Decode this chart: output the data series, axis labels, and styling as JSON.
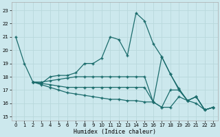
{
  "xlabel": "Humidex (Indice chaleur)",
  "bg_color": "#cce8ed",
  "line_color": "#1a6b6b",
  "grid_color": "#b8d8dc",
  "ylim": [
    14.7,
    23.6
  ],
  "xlim": [
    -0.5,
    23.5
  ],
  "yticks": [
    15,
    16,
    17,
    18,
    19,
    20,
    21,
    22,
    23
  ],
  "xticks": [
    0,
    1,
    2,
    3,
    4,
    5,
    6,
    7,
    8,
    9,
    10,
    11,
    12,
    13,
    14,
    15,
    16,
    17,
    18,
    19,
    20,
    21,
    22,
    23
  ],
  "lines": [
    [
      [
        0,
        21.0
      ],
      [
        1,
        19.0
      ],
      [
        2,
        17.6
      ],
      [
        3,
        17.5
      ],
      [
        4,
        18.0
      ],
      [
        5,
        18.1
      ],
      [
        6,
        18.1
      ],
      [
        7,
        18.3
      ],
      [
        8,
        19.0
      ],
      [
        9,
        19.0
      ],
      [
        10,
        19.4
      ],
      [
        11,
        21.0
      ],
      [
        12,
        20.8
      ],
      [
        13,
        19.6
      ],
      [
        14,
        22.8
      ],
      [
        15,
        22.2
      ],
      [
        16,
        20.5
      ],
      [
        17,
        19.5
      ],
      [
        18,
        18.2
      ],
      [
        19,
        17.1
      ],
      [
        20,
        16.2
      ],
      [
        21,
        16.5
      ],
      [
        22,
        15.5
      ],
      [
        23,
        15.7
      ]
    ],
    [
      [
        2,
        17.6
      ],
      [
        3,
        17.6
      ],
      [
        4,
        17.7
      ],
      [
        5,
        17.8
      ],
      [
        6,
        17.9
      ],
      [
        7,
        18.0
      ],
      [
        8,
        18.0
      ],
      [
        9,
        18.0
      ],
      [
        10,
        18.0
      ],
      [
        11,
        18.0
      ],
      [
        12,
        18.0
      ],
      [
        13,
        18.0
      ],
      [
        14,
        18.0
      ],
      [
        15,
        18.0
      ],
      [
        16,
        16.1
      ],
      [
        17,
        19.5
      ],
      [
        18,
        18.2
      ],
      [
        19,
        17.0
      ],
      [
        20,
        16.2
      ],
      [
        21,
        16.5
      ],
      [
        22,
        15.5
      ],
      [
        23,
        15.7
      ]
    ],
    [
      [
        2,
        17.6
      ],
      [
        3,
        17.5
      ],
      [
        4,
        17.4
      ],
      [
        5,
        17.3
      ],
      [
        6,
        17.2
      ],
      [
        7,
        17.2
      ],
      [
        8,
        17.2
      ],
      [
        9,
        17.2
      ],
      [
        10,
        17.2
      ],
      [
        11,
        17.2
      ],
      [
        12,
        17.2
      ],
      [
        13,
        17.2
      ],
      [
        14,
        17.2
      ],
      [
        15,
        17.2
      ],
      [
        16,
        16.1
      ],
      [
        17,
        15.7
      ],
      [
        18,
        17.0
      ],
      [
        19,
        17.0
      ],
      [
        20,
        16.2
      ],
      [
        21,
        16.5
      ],
      [
        22,
        15.5
      ],
      [
        23,
        15.7
      ]
    ],
    [
      [
        2,
        17.6
      ],
      [
        3,
        17.4
      ],
      [
        4,
        17.2
      ],
      [
        5,
        17.0
      ],
      [
        6,
        16.8
      ],
      [
        7,
        16.7
      ],
      [
        8,
        16.6
      ],
      [
        9,
        16.5
      ],
      [
        10,
        16.4
      ],
      [
        11,
        16.3
      ],
      [
        12,
        16.3
      ],
      [
        13,
        16.2
      ],
      [
        14,
        16.2
      ],
      [
        15,
        16.1
      ],
      [
        16,
        16.1
      ],
      [
        17,
        15.7
      ],
      [
        18,
        15.7
      ],
      [
        19,
        16.5
      ],
      [
        20,
        16.2
      ],
      [
        21,
        16.0
      ],
      [
        22,
        15.5
      ],
      [
        23,
        15.7
      ]
    ]
  ]
}
